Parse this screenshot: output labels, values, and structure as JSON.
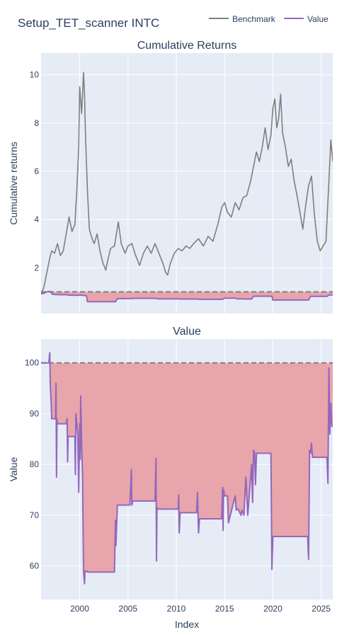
{
  "chart_data": {
    "type": "line",
    "title": "Setup_TET_scanner INTC",
    "legend": {
      "placement": "top-right",
      "entries": [
        "Benchmark",
        "Value"
      ]
    },
    "colors": {
      "benchmark": "#7f7f7f",
      "value": "#9467bd",
      "drawdown_fill": "#e8a1a6",
      "baseline": "#808080",
      "plot_bg": "#e5ecf6",
      "grid": "#ffffff"
    },
    "shared_x": {
      "label": "Index",
      "range": [
        1996.0,
        2026.2
      ],
      "ticks": [
        2000,
        2005,
        2010,
        2015,
        2020,
        2025
      ],
      "tick_labels": [
        "2000",
        "2005",
        "2010",
        "2015",
        "2020",
        "2025"
      ]
    },
    "panels": [
      {
        "id": "cumulative_returns",
        "title": "Cumulative Returns",
        "ylabel": "Cumulative returns",
        "ylim": [
          0.1,
          10.9
        ],
        "yticks": [
          2,
          4,
          6,
          8,
          10
        ],
        "ytick_labels": [
          "2",
          "4",
          "6",
          "8",
          "10"
        ],
        "grid": true,
        "baseline": 1.0,
        "series": [
          {
            "name": "Benchmark",
            "x": [
              1996.0,
              1996.3,
              1996.6,
              1996.9,
              1997.1,
              1997.4,
              1997.7,
              1998.0,
              1998.3,
              1998.6,
              1998.9,
              1999.2,
              1999.5,
              1999.7,
              1999.9,
              2000.0,
              2000.2,
              2000.4,
              2000.5,
              2000.6,
              2000.8,
              2001.0,
              2001.2,
              2001.5,
              2001.8,
              2002.1,
              2002.4,
              2002.7,
              2002.9,
              2003.2,
              2003.6,
              2004.0,
              2004.3,
              2004.7,
              2005.0,
              2005.4,
              2005.8,
              2006.2,
              2006.6,
              2007.0,
              2007.4,
              2007.8,
              2008.2,
              2008.6,
              2008.9,
              2009.1,
              2009.4,
              2009.8,
              2010.2,
              2010.6,
              2011.0,
              2011.4,
              2011.8,
              2012.3,
              2012.8,
              2013.3,
              2013.8,
              2014.3,
              2014.7,
              2015.0,
              2015.3,
              2015.7,
              2016.1,
              2016.5,
              2016.9,
              2017.3,
              2017.7,
              2018.0,
              2018.3,
              2018.6,
              2018.9,
              2019.2,
              2019.5,
              2019.8,
              2020.0,
              2020.2,
              2020.4,
              2020.6,
              2020.8,
              2021.0,
              2021.3,
              2021.6,
              2021.9,
              2022.2,
              2022.5,
              2022.8,
              2023.1,
              2023.4,
              2023.7,
              2024.0,
              2024.3,
              2024.6,
              2024.9,
              2025.2,
              2025.5,
              2025.8,
              2026.0,
              2026.2
            ],
            "y": [
              0.9,
              1.2,
              1.8,
              2.4,
              2.7,
              2.6,
              3.0,
              2.5,
              2.7,
              3.4,
              4.1,
              3.5,
              3.8,
              5.2,
              7.0,
              9.5,
              8.4,
              10.1,
              9.2,
              7.5,
              5.2,
              3.6,
              3.3,
              3.0,
              3.4,
              2.7,
              2.2,
              1.9,
              2.3,
              2.8,
              2.9,
              3.9,
              3.0,
              2.6,
              2.9,
              3.0,
              2.5,
              2.1,
              2.6,
              2.9,
              2.6,
              3.0,
              2.6,
              2.2,
              1.8,
              1.7,
              2.2,
              2.6,
              2.8,
              2.7,
              2.9,
              2.8,
              3.0,
              3.2,
              2.9,
              3.3,
              3.1,
              3.8,
              4.5,
              4.7,
              4.3,
              4.1,
              4.7,
              4.4,
              4.9,
              5.0,
              5.6,
              6.2,
              6.8,
              6.4,
              7.0,
              7.8,
              6.9,
              7.5,
              8.6,
              9.0,
              7.8,
              8.2,
              9.2,
              7.6,
              7.0,
              6.2,
              6.5,
              5.6,
              5.0,
              4.3,
              3.6,
              4.6,
              5.4,
              5.8,
              4.2,
              3.1,
              2.7,
              2.9,
              3.1,
              5.6,
              7.3,
              6.4
            ]
          },
          {
            "name": "Value",
            "x": [
              1996.0,
              1996.3,
              1996.6,
              1996.9,
              1997.2,
              1997.5,
              1998.0,
              1998.6,
              1999.0,
              1999.4,
              1999.8,
              2000.2,
              2000.5,
              2000.7,
              2000.8,
              2003.7,
              2003.9,
              2005.3,
              2005.5,
              2007.9,
              2008.1,
              2010.2,
              2010.4,
              2012.2,
              2012.4,
              2014.8,
              2015.0,
              2016.1,
              2016.3,
              2016.8,
              2017.2,
              2017.8,
              2018.0,
              2018.3,
              2018.5,
              2019.9,
              2020.0,
              2023.7,
              2023.9,
              2024.0,
              2024.1,
              2025.6,
              2025.8,
              2026.0,
              2026.2
            ],
            "y": [
              0.92,
              0.94,
              1.0,
              1.02,
              0.9,
              0.89,
              0.88,
              0.88,
              0.86,
              0.86,
              0.86,
              0.86,
              0.85,
              0.84,
              0.59,
              0.59,
              0.72,
              0.72,
              0.73,
              0.73,
              0.71,
              0.71,
              0.7,
              0.7,
              0.69,
              0.69,
              0.74,
              0.74,
              0.71,
              0.71,
              0.7,
              0.7,
              0.82,
              0.82,
              0.82,
              0.82,
              0.66,
              0.66,
              0.82,
              0.81,
              0.81,
              0.81,
              0.87,
              0.87,
              0.87
            ]
          }
        ]
      },
      {
        "id": "value",
        "title": "Value",
        "ylabel": "Value",
        "ylim": [
          53.4,
          104.7
        ],
        "yticks": [
          60,
          70,
          80,
          90,
          100
        ],
        "ytick_labels": [
          "60",
          "70",
          "80",
          "90",
          "100"
        ],
        "grid": true,
        "baseline": 100,
        "series": [
          {
            "name": "Value",
            "x": [
              1996.0,
              1996.8,
              1996.9,
              1996.95,
              1997.05,
              1997.1,
              1997.4,
              1997.5,
              1997.55,
              1997.6,
              1997.65,
              1997.7,
              1998.6,
              1998.7,
              1998.75,
              1998.8,
              1999.4,
              1999.5,
              1999.55,
              1999.6,
              1999.8,
              1999.9,
              2000.0,
              2000.05,
              2000.1,
              2000.2,
              2000.3,
              2000.35,
              2000.4,
              2000.5,
              2000.55,
              2000.6,
              2000.62,
              2000.7,
              2000.75,
              2000.8,
              2003.6,
              2003.7,
              2003.75,
              2003.9,
              2004.0,
              2005.2,
              2005.35,
              2005.4,
              2005.5,
              2005.6,
              2007.8,
              2007.9,
              2007.95,
              2008.0,
              2008.1,
              2010.2,
              2010.25,
              2010.3,
              2010.4,
              2012.1,
              2012.2,
              2012.3,
              2012.4,
              2014.7,
              2014.8,
              2014.85,
              2014.9,
              2015.0,
              2015.1,
              2015.3,
              2015.4,
              2016.1,
              2016.2,
              2016.3,
              2016.4,
              2016.7,
              2016.8,
              2017.0,
              2017.2,
              2017.4,
              2017.8,
              2017.9,
              2018.0,
              2018.1,
              2018.2,
              2018.3,
              2018.4,
              2018.5,
              2019.8,
              2019.9,
              2020.0,
              2023.6,
              2023.7,
              2023.8,
              2023.9,
              2024.0,
              2024.1,
              2024.2,
              2025.6,
              2025.7,
              2025.8,
              2025.9,
              2026.0,
              2026.1,
              2026.2
            ],
            "y": [
              100,
              100,
              102,
              96,
              92,
              89,
              89,
              89,
              96,
              77.5,
              89,
              88,
              88,
              89,
              80.5,
              85.5,
              85.5,
              85.5,
              78,
              90,
              86,
              74.5,
              88,
              81,
              93.5,
              84,
              77.5,
              67,
              59,
              56.5,
              59,
              59,
              59,
              59,
              59,
              58.8,
              58.8,
              69,
              64,
              72,
              72,
              72,
              79,
              72,
              72.8,
              72.8,
              72.8,
              81.2,
              61,
              71.5,
              71.2,
              71.2,
              74,
              66.5,
              70.5,
              70.5,
              74.5,
              66.5,
              69.3,
              69.3,
              75.5,
              67,
              75,
              73.8,
              73.8,
              73.8,
              68.5,
              73.8,
              71,
              71.2,
              71.2,
              70,
              71,
              70,
              77.5,
              70,
              80,
              72.5,
              82.8,
              82.3,
              76,
              82.2,
              82.2,
              82.2,
              82.2,
              59.3,
              65.8,
              65.8,
              61.3,
              82.8,
              82.2,
              84.2,
              81.4,
              81.4,
              81.4,
              76.3,
              99,
              86,
              92,
              87.5,
              87.5
            ]
          }
        ]
      }
    ]
  }
}
